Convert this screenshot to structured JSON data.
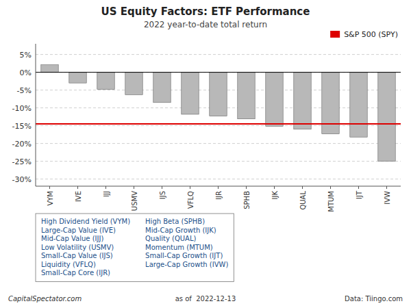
{
  "chart_data": {
    "type": "bar",
    "title": "US Equity Factors: ETF Performance",
    "subtitle": "2022 year-to-date total return",
    "categories": [
      "VYM",
      "IVE",
      "IJJ",
      "USMV",
      "IJS",
      "VFLQ",
      "IJR",
      "SPHB",
      "IJK",
      "QUAL",
      "MTUM",
      "IJT",
      "IVW"
    ],
    "values": [
      2.1,
      -3.0,
      -4.8,
      -6.3,
      -8.5,
      -11.8,
      -12.3,
      -13.1,
      -15.2,
      -16.0,
      -17.3,
      -18.2,
      -25.0
    ],
    "color": "#b8b8b8",
    "ylim": [
      -32,
      8
    ],
    "yticks": [
      {
        "value": 5,
        "label": "5%"
      },
      {
        "value": 0,
        "label": "0%"
      },
      {
        "value": -5,
        "label": "-5%"
      },
      {
        "value": -10,
        "label": "-10%"
      },
      {
        "value": -15,
        "label": "-15%"
      },
      {
        "value": -20,
        "label": "-20%"
      },
      {
        "value": -25,
        "label": "-25%"
      },
      {
        "value": -30,
        "label": "-30%"
      }
    ],
    "grid": true,
    "legend": "upper right",
    "reference_lines": [
      {
        "name": "S&P 500 (SPY)",
        "value": -14.5,
        "color": "#dd0000"
      }
    ],
    "annotations": {
      "color": "#1a4f8a",
      "columns": [
        [
          "High Dividend Yield (VYM)",
          "Large-Cap Value (IVE)",
          "Mid-Cap Value (IJJ)",
          "Low Volatility (USMV)",
          "Small-Cap Value (IJS)",
          "Liquidity (VFLQ)",
          "Small-Cap Core (IJR)"
        ],
        [
          "High Beta (SPHB)",
          "Mid-Cap Growth (IJK)",
          "Quality (QUAL)",
          "Momentum (MTUM)",
          "Small-Cap Growth (IJT)",
          "Large-Cap Growth (IVW)"
        ]
      ]
    },
    "footer": [
      "CapitalSpectator.com",
      "as of  2022-12-13",
      "Data: Tiingo.com"
    ]
  }
}
